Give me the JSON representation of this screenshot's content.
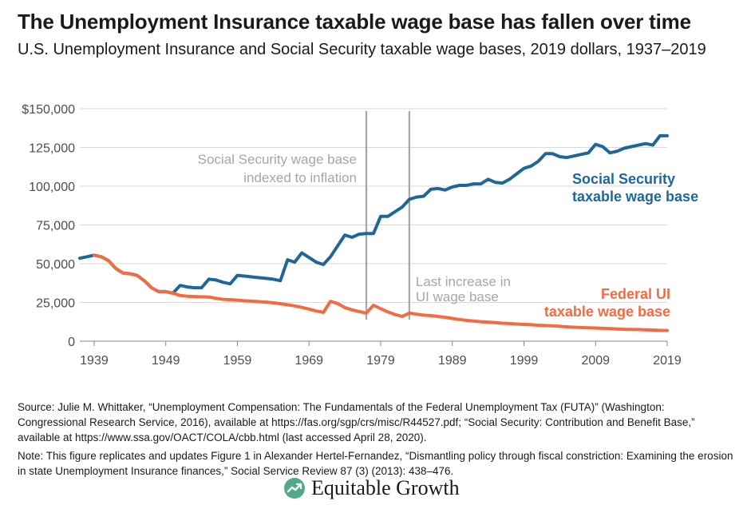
{
  "title": "The Unemployment Insurance taxable wage base has fallen over time",
  "subtitle": "U.S. Unemployment Insurance and Social Security taxable wage bases, 2019 dollars, 1937–2019",
  "source": "Source: Julie M. Whittaker, “Unemployment Compensation: The Fundamentals of the Federal Unemployment Tax (FUTA)” (Washington: Congressional Research Service, 2016), available at  https://fas.org/sgp/crs/misc/R44527.pdf; “Social Security: Contribution and Benefit Base,” available at https://www.ssa.gov/OACT/COLA/cbb.html (last accessed April 28, 2020).",
  "note": "Note: This figure replicates and updates Figure 1 in Alexander Hertel-Fernandez, “Dismantling policy through fiscal constriction: Examining the erosion in state Unemployment Insurance finances,” Social Service Review 87 (3) (2013): 438–476.",
  "logo": {
    "text": "Equitable Growth",
    "icon": "equitable-growth-logo-icon"
  },
  "chart_data": {
    "type": "line",
    "xlim": [
      1937,
      2019
    ],
    "ylim": [
      0,
      150000
    ],
    "x_ticks": [
      1939,
      1949,
      1959,
      1969,
      1979,
      1989,
      1999,
      2009,
      2019
    ],
    "y_ticks": [
      0,
      25000,
      50000,
      75000,
      100000,
      125000,
      150000
    ],
    "y_tick_labels": [
      "0",
      "25,000",
      "50,000",
      "75,000",
      "100,000",
      "125,000",
      "$150,000"
    ],
    "grid": "horizontal",
    "series": [
      {
        "name": "Social Security taxable wage base",
        "label_lines": [
          "Social Security",
          "taxable wage base"
        ],
        "color": "#1f6799",
        "x": [
          1937,
          1938,
          1939,
          1940,
          1941,
          1942,
          1943,
          1944,
          1945,
          1946,
          1947,
          1948,
          1949,
          1950,
          1951,
          1952,
          1953,
          1954,
          1955,
          1956,
          1957,
          1958,
          1959,
          1960,
          1961,
          1962,
          1963,
          1964,
          1965,
          1966,
          1967,
          1968,
          1969,
          1970,
          1971,
          1972,
          1973,
          1974,
          1975,
          1976,
          1977,
          1978,
          1979,
          1980,
          1981,
          1982,
          1983,
          1984,
          1985,
          1986,
          1987,
          1988,
          1989,
          1990,
          1991,
          1992,
          1993,
          1994,
          1995,
          1996,
          1997,
          1998,
          1999,
          2000,
          2001,
          2002,
          2003,
          2004,
          2005,
          2006,
          2007,
          2008,
          2009,
          2010,
          2011,
          2012,
          2013,
          2014,
          2015,
          2016,
          2017,
          2018,
          2019
        ],
        "values": [
          53500,
          54500,
          55500,
          54500,
          52000,
          47000,
          44000,
          43500,
          42500,
          39000,
          34500,
          32000,
          32000,
          31000,
          36000,
          35000,
          34500,
          34500,
          40000,
          39500,
          38000,
          37000,
          42500,
          42000,
          41500,
          41000,
          40500,
          40000,
          39000,
          52500,
          51000,
          57000,
          54000,
          51000,
          49500,
          54500,
          61500,
          68500,
          67000,
          69000,
          69500,
          69500,
          80500,
          80500,
          83500,
          86500,
          91500,
          93000,
          93500,
          98000,
          98500,
          97500,
          99500,
          100500,
          100500,
          101500,
          101500,
          104500,
          102500,
          102000,
          104500,
          108000,
          111500,
          113000,
          116000,
          121000,
          121000,
          119000,
          118500,
          119500,
          120500,
          121500,
          127000,
          125500,
          121500,
          122500,
          124500,
          125500,
          126500,
          127500,
          126500,
          132500,
          132500
        ]
      },
      {
        "name": "Federal UI taxable wage base",
        "label_lines": [
          "Federal UI",
          "taxable wage base"
        ],
        "color": "#f26b43",
        "x": [
          1939,
          1940,
          1941,
          1942,
          1943,
          1944,
          1945,
          1946,
          1947,
          1948,
          1949,
          1950,
          1951,
          1952,
          1953,
          1954,
          1955,
          1956,
          1957,
          1958,
          1959,
          1960,
          1961,
          1962,
          1963,
          1964,
          1965,
          1966,
          1967,
          1968,
          1969,
          1970,
          1971,
          1972,
          1973,
          1974,
          1975,
          1976,
          1977,
          1978,
          1979,
          1980,
          1981,
          1982,
          1983,
          1984,
          1985,
          1986,
          1987,
          1988,
          1989,
          1990,
          1991,
          1992,
          1993,
          1994,
          1995,
          1996,
          1997,
          1998,
          1999,
          2000,
          2001,
          2002,
          2003,
          2004,
          2005,
          2006,
          2007,
          2008,
          2009,
          2010,
          2011,
          2012,
          2013,
          2014,
          2015,
          2016,
          2017,
          2018,
          2019
        ],
        "values": [
          55500,
          54500,
          52000,
          47000,
          44000,
          43500,
          42500,
          39000,
          34500,
          32000,
          32000,
          31000,
          29500,
          29000,
          28800,
          28600,
          28500,
          27700,
          27000,
          26800,
          26500,
          26100,
          25800,
          25500,
          25200,
          24800,
          24200,
          23500,
          22800,
          21800,
          20700,
          19500,
          18600,
          25700,
          24300,
          21700,
          20200,
          19100,
          18200,
          23200,
          21000,
          18900,
          17200,
          16000,
          18100,
          17400,
          16800,
          16500,
          16000,
          15400,
          14700,
          14000,
          13400,
          13000,
          12600,
          12300,
          12000,
          11600,
          11400,
          11100,
          10800,
          10600,
          10300,
          10100,
          9900,
          9600,
          9300,
          9000,
          8800,
          8600,
          8500,
          8300,
          8100,
          7900,
          7700,
          7600,
          7500,
          7300,
          7200,
          7000,
          6900
        ]
      }
    ],
    "annotations": [
      {
        "x": 1977,
        "lines": [
          "Social Security wage base",
          "indexed to inflation"
        ],
        "color": "#a6a6a6"
      },
      {
        "x": 1983,
        "lines": [
          "Last increase in",
          "UI wage base"
        ],
        "color": "#a6a6a6"
      }
    ]
  }
}
